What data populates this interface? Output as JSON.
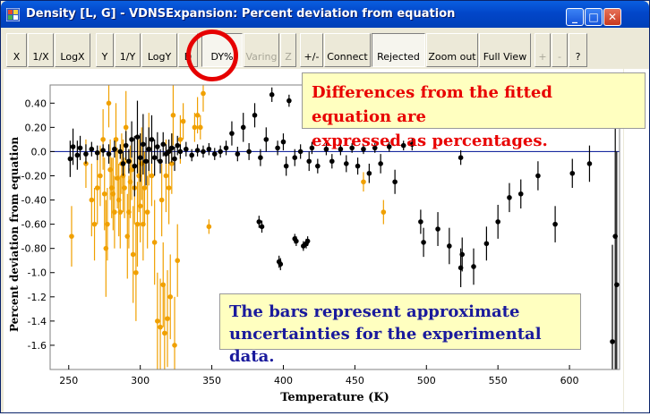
{
  "window": {
    "title": "Density [L, G] - VDNSExpansion: Percent deviation from equation",
    "minimize": "_",
    "maximize": "□",
    "close": "✕"
  },
  "toolbar": [
    {
      "label": "X",
      "state": "normal"
    },
    {
      "label": "1/X",
      "state": "normal"
    },
    {
      "label": "LogX",
      "state": "normal"
    },
    {
      "label": "Y",
      "state": "normal"
    },
    {
      "label": "1/Y",
      "state": "normal"
    },
    {
      "label": "LogY",
      "state": "normal"
    },
    {
      "label": "D",
      "state": "normal"
    },
    {
      "label": "DY%",
      "state": "pressed"
    },
    {
      "label": "Varing",
      "state": "disabled"
    },
    {
      "label": "Z",
      "state": "disabled"
    },
    {
      "label": "+/-",
      "state": "normal"
    },
    {
      "label": "Connect",
      "state": "normal"
    },
    {
      "label": "Rejected",
      "state": "pressed"
    },
    {
      "label": "Zoom out",
      "state": "normal"
    },
    {
      "label": "Full View",
      "state": "normal"
    },
    {
      "label": "+",
      "state": "disabled"
    },
    {
      "label": "-",
      "state": "disabled"
    },
    {
      "label": "?",
      "state": "normal"
    }
  ],
  "annotations": {
    "top_note": [
      "Differences from the fitted equation are",
      "expressed as percentages."
    ],
    "bottom_note": [
      "The bars represent approximate",
      "uncertainties for the experimental data."
    ]
  },
  "colors": {
    "accepted": "#000000",
    "rejected": "#f0a000",
    "zero_line": "#1a2aa0",
    "highlight": "#e60000"
  },
  "chart_data": {
    "type": "scatter",
    "title": "",
    "xlabel": "Temperature (K)",
    "ylabel": "Percent deviation from equation",
    "xlim": [
      237,
      635
    ],
    "ylim": [
      -1.8,
      0.55
    ],
    "xticks": [
      250,
      300,
      350,
      400,
      450,
      500,
      550,
      600
    ],
    "yticks": [
      0.4,
      0.2,
      0.0,
      -0.2,
      -0.4,
      -0.6,
      -0.8,
      -1.0,
      -1.2,
      -1.4,
      -1.6
    ],
    "ytick_labels": [
      "0.40",
      "0.20",
      "0.0",
      "-0.20",
      "-0.40",
      "-0.60",
      "-0.80",
      "-1.0",
      "-1.2",
      "-1.4",
      "-1.6"
    ],
    "series": [
      {
        "key": "accepted",
        "points": [
          [
            251,
            -0.06,
            0.15
          ],
          [
            253,
            0.04,
            0.15
          ],
          [
            256,
            -0.03,
            0.12
          ],
          [
            258,
            0.03,
            0.1
          ],
          [
            262,
            -0.02,
            0.08
          ],
          [
            266,
            0.02,
            0.06
          ],
          [
            270,
            -0.01,
            0.06
          ],
          [
            274,
            0.01,
            0.05
          ],
          [
            278,
            -0.02,
            0.08
          ],
          [
            282,
            0.02,
            0.07
          ],
          [
            286,
            0.0,
            0.06
          ],
          [
            288,
            -0.1,
            0.1
          ],
          [
            290,
            0.05,
            0.12
          ],
          [
            292,
            -0.08,
            0.1
          ],
          [
            294,
            0.1,
            0.15
          ],
          [
            296,
            -0.12,
            0.25
          ],
          [
            298,
            0.12,
            0.3
          ],
          [
            300,
            -0.05,
            0.2
          ],
          [
            302,
            0.06,
            0.25
          ],
          [
            304,
            -0.08,
            0.2
          ],
          [
            306,
            0.02,
            0.18
          ],
          [
            308,
            0.1,
            0.2
          ],
          [
            310,
            -0.05,
            0.15
          ],
          [
            312,
            0.04,
            0.12
          ],
          [
            314,
            -0.08,
            0.1
          ],
          [
            316,
            0.06,
            0.1
          ],
          [
            318,
            -0.02,
            0.08
          ],
          [
            320,
            0.0,
            0.1
          ],
          [
            322,
            0.03,
            0.12
          ],
          [
            324,
            -0.06,
            0.1
          ],
          [
            326,
            0.05,
            0.08
          ],
          [
            328,
            0.0,
            0.06
          ],
          [
            332,
            0.02,
            0.06
          ],
          [
            336,
            -0.03,
            0.05
          ],
          [
            340,
            0.01,
            0.05
          ],
          [
            344,
            0.0,
            0.05
          ],
          [
            348,
            0.02,
            0.05
          ],
          [
            352,
            -0.02,
            0.05
          ],
          [
            356,
            0.0,
            0.05
          ],
          [
            360,
            0.03,
            0.06
          ],
          [
            364,
            0.15,
            0.1
          ],
          [
            368,
            -0.02,
            0.06
          ],
          [
            372,
            0.2,
            0.12
          ],
          [
            376,
            0.0,
            0.07
          ],
          [
            380,
            0.3,
            0.1
          ],
          [
            384,
            -0.05,
            0.07
          ],
          [
            388,
            0.1,
            0.1
          ],
          [
            392,
            0.47,
            0.06
          ],
          [
            396,
            0.03,
            0.06
          ],
          [
            400,
            0.08,
            0.07
          ],
          [
            402,
            -0.12,
            0.08
          ],
          [
            404,
            0.42,
            0.05
          ],
          [
            408,
            -0.05,
            0.07
          ],
          [
            412,
            0.0,
            0.06
          ],
          [
            418,
            -0.08,
            0.08
          ],
          [
            420,
            0.03,
            0.05
          ],
          [
            424,
            -0.12,
            0.06
          ],
          [
            430,
            0.02,
            0.05
          ],
          [
            434,
            -0.08,
            0.06
          ],
          [
            440,
            0.02,
            0.05
          ],
          [
            444,
            -0.1,
            0.07
          ],
          [
            448,
            0.03,
            0.04
          ],
          [
            452,
            -0.12,
            0.07
          ],
          [
            456,
            0.02,
            0.04
          ],
          [
            460,
            -0.18,
            0.08
          ],
          [
            464,
            0.03,
            0.04
          ],
          [
            468,
            -0.1,
            0.08
          ],
          [
            474,
            0.04,
            0.04
          ],
          [
            478,
            -0.25,
            0.1
          ],
          [
            484,
            0.05,
            0.04
          ],
          [
            490,
            0.06,
            0.05
          ],
          [
            383,
            -0.58,
            0.05
          ],
          [
            385,
            -0.62,
            0.05
          ],
          [
            397,
            -0.91,
            0.05
          ],
          [
            398,
            -0.93,
            0.05
          ],
          [
            408,
            -0.72,
            0.04
          ],
          [
            409,
            -0.74,
            0.04
          ],
          [
            414,
            -0.78,
            0.04
          ],
          [
            416,
            -0.76,
            0.04
          ],
          [
            417,
            -0.74,
            0.04
          ],
          [
            496,
            -0.58,
            0.1
          ],
          [
            498,
            -0.75,
            0.12
          ],
          [
            508,
            -0.64,
            0.14
          ],
          [
            516,
            -0.78,
            0.15
          ],
          [
            524,
            -0.96,
            0.16
          ],
          [
            525,
            -0.85,
            0.14
          ],
          [
            533,
            -0.95,
            0.15
          ],
          [
            542,
            -0.76,
            0.14
          ],
          [
            550,
            -0.58,
            0.14
          ],
          [
            558,
            -0.38,
            0.12
          ],
          [
            566,
            -0.35,
            0.12
          ],
          [
            578,
            -0.2,
            0.12
          ],
          [
            590,
            -0.6,
            0.15
          ],
          [
            602,
            -0.18,
            0.12
          ],
          [
            614,
            -0.1,
            0.15
          ],
          [
            524,
            -0.05,
            0.06
          ],
          [
            630,
            -1.57,
            0.8
          ],
          [
            632,
            -0.7,
            1.3
          ],
          [
            633,
            -1.1,
            1.1
          ]
        ]
      },
      {
        "key": "rejected",
        "points": [
          [
            252,
            -0.7,
            0.25
          ],
          [
            262,
            -0.1,
            0.2
          ],
          [
            266,
            -0.4,
            0.3
          ],
          [
            268,
            -0.6,
            0.3
          ],
          [
            270,
            -0.3,
            0.3
          ],
          [
            272,
            -0.2,
            0.25
          ],
          [
            274,
            0.1,
            0.25
          ],
          [
            275,
            -0.35,
            0.3
          ],
          [
            276,
            -0.8,
            0.4
          ],
          [
            277,
            -0.6,
            0.3
          ],
          [
            278,
            0.4,
            0.2
          ],
          [
            279,
            -0.15,
            0.25
          ],
          [
            280,
            -0.3,
            0.25
          ],
          [
            281,
            -0.35,
            0.3
          ],
          [
            282,
            -0.5,
            0.3
          ],
          [
            283,
            0.1,
            0.3
          ],
          [
            284,
            -0.22,
            0.25
          ],
          [
            285,
            -0.4,
            0.3
          ],
          [
            286,
            -0.5,
            0.3
          ],
          [
            287,
            -0.1,
            0.25
          ],
          [
            288,
            -0.2,
            0.3
          ],
          [
            289,
            -0.3,
            0.25
          ],
          [
            290,
            0.2,
            0.3
          ],
          [
            291,
            -0.7,
            0.35
          ],
          [
            292,
            -0.5,
            0.3
          ],
          [
            293,
            -0.25,
            0.3
          ],
          [
            294,
            -0.15,
            0.25
          ],
          [
            295,
            -0.85,
            0.4
          ],
          [
            296,
            -0.3,
            0.3
          ],
          [
            297,
            -1.0,
            0.4
          ],
          [
            298,
            -0.6,
            0.35
          ],
          [
            299,
            -0.2,
            0.3
          ],
          [
            300,
            -0.45,
            0.3
          ],
          [
            301,
            -0.1,
            0.3
          ],
          [
            302,
            -0.6,
            0.3
          ],
          [
            303,
            -0.3,
            0.3
          ],
          [
            305,
            -0.5,
            0.3
          ],
          [
            306,
            0.02,
            0.3
          ],
          [
            308,
            -0.2,
            0.25
          ],
          [
            310,
            -0.75,
            0.35
          ],
          [
            312,
            -1.4,
            0.4
          ],
          [
            314,
            -1.45,
            0.4
          ],
          [
            315,
            -0.4,
            0.3
          ],
          [
            316,
            -1.1,
            0.35
          ],
          [
            317,
            -1.5,
            0.4
          ],
          [
            318,
            -0.2,
            0.3
          ],
          [
            319,
            -1.38,
            0.4
          ],
          [
            320,
            -0.3,
            0.3
          ],
          [
            321,
            -1.2,
            0.35
          ],
          [
            322,
            -0.1,
            0.25
          ],
          [
            323,
            0.3,
            0.25
          ],
          [
            324,
            -1.6,
            0.4
          ],
          [
            326,
            -0.9,
            0.3
          ],
          [
            328,
            0.1,
            0.2
          ],
          [
            330,
            0.25,
            0.15
          ],
          [
            338,
            0.2,
            0.12
          ],
          [
            340,
            0.3,
            0.15
          ],
          [
            342,
            0.2,
            0.1
          ],
          [
            344,
            0.48,
            0.15
          ],
          [
            348,
            -0.62,
            0.06
          ],
          [
            456,
            -0.25,
            0.08
          ],
          [
            470,
            -0.5,
            0.1
          ]
        ]
      }
    ]
  }
}
